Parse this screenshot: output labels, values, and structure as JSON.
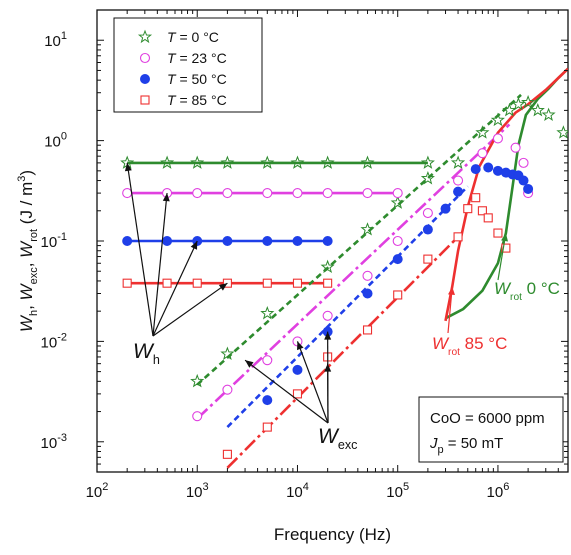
{
  "chart_data": {
    "type": "scatter",
    "x_scale": "log",
    "y_scale": "log",
    "xlim": [
      100,
      5000000
    ],
    "ylim": [
      0.0005,
      20
    ],
    "xlabel": "Frequency (Hz)",
    "ylabel": {
      "parts": [
        {
          "text": "W",
          "sub": "h"
        },
        {
          "text": ", "
        },
        {
          "text": "W",
          "sub": "exc"
        },
        {
          "text": ", "
        },
        {
          "text": "W",
          "sub": "rot"
        },
        {
          "text": "  (J / m"
        },
        {
          "text": "",
          "sup": "3"
        },
        {
          "text": ")"
        }
      ]
    },
    "x_ticks": [
      {
        "value": 100,
        "base": "10",
        "exp": "2"
      },
      {
        "value": 1000,
        "base": "10",
        "exp": "3"
      },
      {
        "value": 10000,
        "base": "10",
        "exp": "4"
      },
      {
        "value": 100000,
        "base": "10",
        "exp": "5"
      },
      {
        "value": 1000000,
        "base": "10",
        "exp": "6"
      }
    ],
    "y_ticks": [
      {
        "value": 0.001,
        "base": "10",
        "exp": "-3"
      },
      {
        "value": 0.01,
        "base": "10",
        "exp": "-2"
      },
      {
        "value": 0.1,
        "base": "10",
        "exp": "-1"
      },
      {
        "value": 1,
        "base": "10",
        "exp": "0"
      },
      {
        "value": 10,
        "base": "10",
        "exp": "1"
      }
    ],
    "legend": {
      "position": "top-left",
      "entries": [
        {
          "prefix": "T",
          "label": " = 0 °C",
          "marker": "star",
          "color": "#2e8b2e"
        },
        {
          "prefix": "T",
          "label": " = 23 °C",
          "marker": "circle-open",
          "color": "#e040e0"
        },
        {
          "prefix": "T",
          "label": " = 50 °C",
          "marker": "circle-filled",
          "color": "#1f3fe8"
        },
        {
          "prefix": "T",
          "label": " = 85 °C",
          "marker": "square-open",
          "color": "#ee3030"
        }
      ]
    },
    "series": [
      {
        "name": "T = 0 °C",
        "marker": "star",
        "color": "#2e8b2e",
        "points": [
          [
            200,
            0.6
          ],
          [
            500,
            0.6
          ],
          [
            1000,
            0.6
          ],
          [
            2000,
            0.6
          ],
          [
            5000,
            0.6
          ],
          [
            10000,
            0.6
          ],
          [
            20000,
            0.6
          ],
          [
            50000,
            0.6
          ],
          [
            200000,
            0.6
          ],
          [
            1000,
            0.004
          ],
          [
            2000,
            0.0075
          ],
          [
            5000,
            0.019
          ],
          [
            20000,
            0.055
          ],
          [
            50000,
            0.13
          ],
          [
            100000,
            0.24
          ],
          [
            200000,
            0.42
          ],
          [
            400000,
            0.6
          ],
          [
            700000,
            1.2
          ],
          [
            1000000,
            1.6
          ],
          [
            1300000,
            2.0
          ],
          [
            1600000,
            2.3
          ],
          [
            2000000,
            2.4
          ],
          [
            2500000,
            2.0
          ],
          [
            3200000,
            1.8
          ],
          [
            4500000,
            1.2
          ]
        ]
      },
      {
        "name": "T = 23 °C",
        "marker": "circle-open",
        "color": "#e040e0",
        "points": [
          [
            200,
            0.3
          ],
          [
            500,
            0.3
          ],
          [
            1000,
            0.3
          ],
          [
            2000,
            0.3
          ],
          [
            5000,
            0.3
          ],
          [
            10000,
            0.3
          ],
          [
            20000,
            0.3
          ],
          [
            50000,
            0.3
          ],
          [
            100000,
            0.3
          ],
          [
            1000,
            0.0018
          ],
          [
            2000,
            0.0033
          ],
          [
            5000,
            0.0065
          ],
          [
            10000,
            0.01
          ],
          [
            20000,
            0.018
          ],
          [
            50000,
            0.045
          ],
          [
            100000,
            0.1
          ],
          [
            200000,
            0.19
          ],
          [
            400000,
            0.4
          ],
          [
            700000,
            0.75
          ],
          [
            1000000,
            1.05
          ],
          [
            1500000,
            0.85
          ],
          [
            1800000,
            0.6
          ],
          [
            2000000,
            0.3
          ]
        ]
      },
      {
        "name": "T = 50 °C",
        "marker": "circle-filled",
        "color": "#1f3fe8",
        "points": [
          [
            200,
            0.1
          ],
          [
            500,
            0.1
          ],
          [
            1000,
            0.1
          ],
          [
            2000,
            0.1
          ],
          [
            5000,
            0.1
          ],
          [
            10000,
            0.1
          ],
          [
            20000,
            0.1
          ],
          [
            5000,
            0.0026
          ],
          [
            10000,
            0.0052
          ],
          [
            20000,
            0.0125
          ],
          [
            50000,
            0.03
          ],
          [
            100000,
            0.066
          ],
          [
            200000,
            0.13
          ],
          [
            300000,
            0.21
          ],
          [
            400000,
            0.31
          ],
          [
            600000,
            0.52
          ],
          [
            800000,
            0.54
          ],
          [
            1000000,
            0.5
          ],
          [
            1200000,
            0.48
          ],
          [
            1400000,
            0.46
          ],
          [
            1600000,
            0.45
          ],
          [
            1800000,
            0.4
          ],
          [
            2000000,
            0.33
          ]
        ]
      },
      {
        "name": "T = 85 °C",
        "marker": "square-open",
        "color": "#ee3030",
        "points": [
          [
            200,
            0.038
          ],
          [
            500,
            0.038
          ],
          [
            1000,
            0.038
          ],
          [
            2000,
            0.038
          ],
          [
            5000,
            0.038
          ],
          [
            10000,
            0.038
          ],
          [
            20000,
            0.038
          ],
          [
            2000,
            0.00075
          ],
          [
            5000,
            0.0014
          ],
          [
            10000,
            0.003
          ],
          [
            20000,
            0.007
          ],
          [
            50000,
            0.013
          ],
          [
            100000,
            0.029
          ],
          [
            200000,
            0.066
          ],
          [
            400000,
            0.11
          ],
          [
            500000,
            0.21
          ],
          [
            600000,
            0.27
          ],
          [
            700000,
            0.2
          ],
          [
            800000,
            0.17
          ],
          [
            1000000,
            0.12
          ],
          [
            1200000,
            0.085
          ]
        ]
      }
    ],
    "fit_lines": [
      {
        "kind": "W_h",
        "color": "#2e8b2e",
        "dash": "solid",
        "points": [
          [
            200,
            0.6
          ],
          [
            200000,
            0.6
          ]
        ]
      },
      {
        "kind": "W_h",
        "color": "#e040e0",
        "dash": "solid",
        "points": [
          [
            200,
            0.3
          ],
          [
            100000,
            0.3
          ]
        ]
      },
      {
        "kind": "W_h",
        "color": "#1f3fe8",
        "dash": "solid",
        "points": [
          [
            200,
            0.1
          ],
          [
            20000,
            0.1
          ]
        ]
      },
      {
        "kind": "W_h",
        "color": "#ee3030",
        "dash": "solid",
        "points": [
          [
            200,
            0.038
          ],
          [
            20000,
            0.038
          ]
        ]
      },
      {
        "kind": "W_exc",
        "color": "#2e8b2e",
        "dash": "short",
        "points": [
          [
            1000,
            0.0037
          ],
          [
            1700000,
            2.85
          ]
        ]
      },
      {
        "kind": "W_exc",
        "color": "#e040e0",
        "dash": "dashdot",
        "points": [
          [
            1000,
            0.0017
          ],
          [
            1300000,
            1.45
          ]
        ]
      },
      {
        "kind": "W_exc",
        "color": "#1f3fe8",
        "dash": "short",
        "points": [
          [
            2000,
            0.0014
          ],
          [
            500000,
            0.35
          ]
        ]
      },
      {
        "kind": "W_exc",
        "color": "#ee3030",
        "dash": "dashdot",
        "points": [
          [
            2000,
            0.00055
          ],
          [
            400000,
            0.11
          ]
        ]
      },
      {
        "kind": "W_rot",
        "color": "#2e8b2e",
        "dash": "solid",
        "points": [
          [
            300000,
            0.017
          ],
          [
            450000,
            0.021
          ],
          [
            700000,
            0.032
          ],
          [
            1000000,
            0.06
          ],
          [
            1200000,
            0.12
          ],
          [
            1400000,
            0.35
          ],
          [
            1600000,
            0.9
          ],
          [
            1900000,
            1.8
          ],
          [
            2500000,
            2.6
          ],
          [
            3200000,
            3.3
          ],
          [
            4000000,
            4.2
          ],
          [
            5000000,
            5.2
          ]
        ]
      },
      {
        "kind": "W_rot",
        "color": "#ee3030",
        "dash": "solid",
        "points": [
          [
            300000,
            0.016
          ],
          [
            350000,
            0.035
          ],
          [
            400000,
            0.08
          ],
          [
            500000,
            0.22
          ],
          [
            650000,
            0.55
          ],
          [
            1000000,
            1.2
          ],
          [
            1500000,
            1.9
          ],
          [
            2000000,
            2.3
          ],
          [
            3000000,
            3.2
          ],
          [
            4000000,
            4.2
          ],
          [
            5000000,
            5.2
          ]
        ]
      }
    ],
    "annotations": [
      {
        "id": "wh",
        "base": "W",
        "sub": "h",
        "color": "#111111",
        "arrows_to": [
          [
            200,
            0.6
          ],
          [
            500,
            0.3
          ],
          [
            1000,
            0.1
          ],
          [
            2000,
            0.038
          ]
        ]
      },
      {
        "id": "wexc",
        "base": "W",
        "sub": "exc",
        "color": "#111111",
        "arrows_to": [
          [
            3000,
            0.0065
          ],
          [
            10000,
            0.01
          ],
          [
            20000,
            0.0125
          ],
          [
            20000,
            0.006
          ]
        ]
      },
      {
        "id": "wrot0",
        "base": "W",
        "sub": "rot",
        "suffix": " 0 °C",
        "color": "#2e8b2e",
        "arrows_to": [
          [
            1200000,
            0.12
          ]
        ]
      },
      {
        "id": "wrot85",
        "base": "W",
        "sub": "rot",
        "suffix": " 85 °C",
        "color": "#ee3030",
        "arrows_to": [
          [
            350000,
            0.035
          ]
        ]
      }
    ],
    "info_box": {
      "line1": "CoO = 6000 ppm",
      "line2_prefix": "J",
      "line2_sub": "p",
      "line2_rest": " = 50 mT"
    },
    "grid": false
  }
}
